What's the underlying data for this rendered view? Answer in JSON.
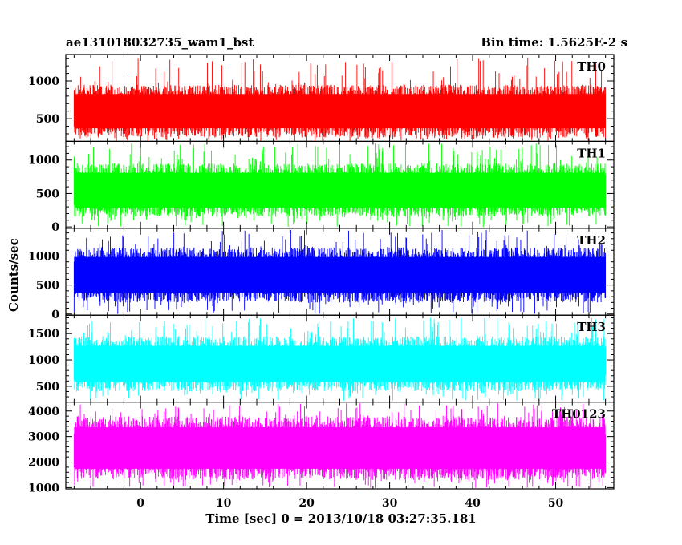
{
  "header": {
    "title_left": "ae131018032735_wam1_bst",
    "title_right": "Bin time: 1.5625E-2 s"
  },
  "chart_data": {
    "type": "line",
    "xlabel": "Time [sec] 0 = 2013/10/18 03:27:35.181",
    "ylabel": "Counts/sec",
    "xlim": [
      -9,
      57
    ],
    "x_ticks": [
      0,
      10,
      20,
      30,
      40,
      50
    ],
    "x_range_data": [
      -8,
      56
    ],
    "panels": [
      {
        "name": "TH0",
        "color": "#ff0000",
        "ylim": [
          200,
          1350
        ],
        "y_ticks": [
          500,
          1000
        ],
        "y_tick_labels": [
          "500",
          "1000"
        ],
        "typical_low": 250,
        "typical_high": 950,
        "peak": 1320
      },
      {
        "name": "TH1",
        "color": "#00ff00",
        "ylim": [
          -20,
          1280
        ],
        "y_ticks": [
          0,
          500,
          1000
        ],
        "y_tick_labels": [
          "0",
          "500",
          "1000"
        ],
        "typical_low": 150,
        "typical_high": 950,
        "peak": 1250
      },
      {
        "name": "TH2",
        "color": "#0000ff",
        "ylim": [
          -20,
          1480
        ],
        "y_ticks": [
          0,
          500,
          1000
        ],
        "y_tick_labels": [
          "0",
          "500",
          "1000"
        ],
        "typical_low": 200,
        "typical_high": 1150,
        "peak": 1450
      },
      {
        "name": "TH3",
        "color": "#00ffff",
        "ylim": [
          200,
          1850
        ],
        "y_ticks": [
          500,
          1000,
          1500
        ],
        "y_tick_labels": [
          "500",
          "1000",
          "1500"
        ],
        "typical_low": 400,
        "typical_high": 1450,
        "peak": 1800
      },
      {
        "name": "TH0123",
        "color": "#ff00ff",
        "ylim": [
          950,
          4350
        ],
        "y_ticks": [
          1000,
          2000,
          3000,
          4000
        ],
        "y_tick_labels": [
          "1000",
          "2000",
          "3000",
          "4000"
        ],
        "typical_low": 1300,
        "typical_high": 3800,
        "peak": 4300
      }
    ]
  }
}
